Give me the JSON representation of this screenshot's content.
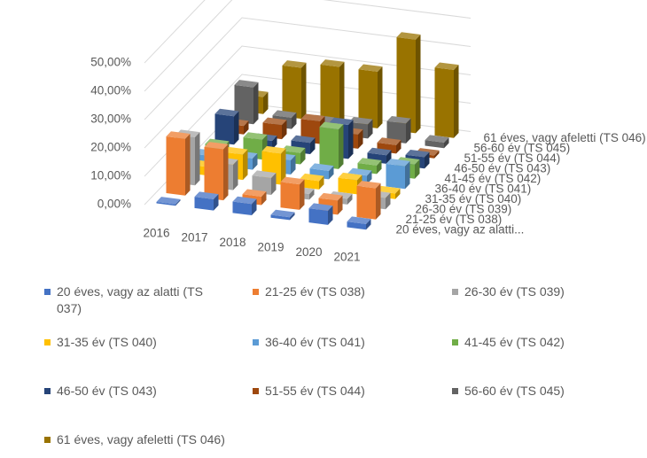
{
  "chart_data": {
    "type": "bar3d",
    "categories": [
      "2016",
      "2017",
      "2018",
      "2019",
      "2020",
      "2021"
    ],
    "depth_labels": [
      "20 éves, vagy az alatti...",
      "21-25 év (TS 038)",
      "26-30 év (TS 039)",
      "31-35 év (TS 040)",
      "36-40 év (TS 041)",
      "41-45 év (TS 042)",
      "46-50 év (TS 043)",
      "51-55 év (TS 044)",
      "56-60 év (TS 045)",
      "61 éves, vagy afeletti (TS 046)"
    ],
    "series": [
      {
        "name": "20 éves, vagy az alatti (TS 037)",
        "color": "#4472c4",
        "values": [
          0.5,
          4,
          4,
          1,
          5,
          2
        ]
      },
      {
        "name": "21-25 év (TS 038)",
        "color": "#ed7d31",
        "values": [
          20,
          18,
          3,
          9,
          5,
          11
        ]
      },
      {
        "name": "26-30 év (TS 039)",
        "color": "#a5a5a5",
        "values": [
          17,
          9,
          6,
          2,
          2,
          4
        ]
      },
      {
        "name": "31-35 év (TS 040)",
        "color": "#ffc000",
        "values": [
          3,
          9,
          11,
          3,
          5,
          2
        ]
      },
      {
        "name": "36-40 év (TS 041)",
        "color": "#5b9bd5",
        "values": [
          3,
          4,
          5,
          3,
          3,
          8
        ]
      },
      {
        "name": "41-45 év (TS 042)",
        "color": "#70ad47",
        "values": [
          3,
          7,
          4,
          14,
          3,
          5
        ]
      },
      {
        "name": "46-50 év (TS 043)",
        "color": "#264478",
        "values": [
          10,
          3,
          4,
          12,
          3,
          4
        ]
      },
      {
        "name": "51-55 év (TS 044)",
        "color": "#9e480e",
        "values": [
          3,
          5,
          8,
          5,
          3,
          1
        ]
      },
      {
        "name": "56-60 év (TS 045)",
        "color": "#636363",
        "values": [
          13,
          4,
          4,
          5,
          7,
          2
        ]
      },
      {
        "name": "61 éves, vagy afeletti (TS 046)",
        "color": "#997300",
        "values": [
          6,
          18,
          20,
          20,
          33,
          24
        ]
      }
    ],
    "ylim": [
      0,
      50
    ],
    "yticks": [
      {
        "value": 0,
        "label": "0,00%"
      },
      {
        "value": 10,
        "label": "10,00%"
      },
      {
        "value": 20,
        "label": "20,00%"
      },
      {
        "value": 30,
        "label": "30,00%"
      },
      {
        "value": 40,
        "label": "40,00%"
      },
      {
        "value": 50,
        "label": "50,00%"
      }
    ],
    "grid": true
  }
}
